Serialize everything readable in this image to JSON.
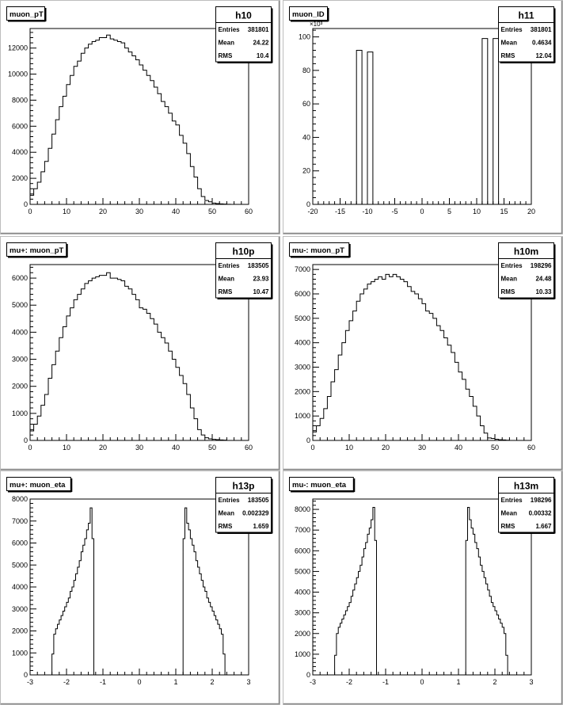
{
  "chart_data": [
    {
      "type": "histogram",
      "title": "muon_pT",
      "stats": {
        "name": "h10",
        "rows": [
          [
            "Entries",
            "381801"
          ],
          [
            "Mean",
            "24.22"
          ],
          [
            "RMS",
            "10.4"
          ]
        ]
      },
      "xlim": [
        0,
        60
      ],
      "ylim": [
        0,
        13500
      ],
      "xticks": [
        0,
        10,
        20,
        30,
        40,
        50,
        60
      ],
      "xticklabels": [
        "0",
        "10",
        "20",
        "30",
        "40",
        "50",
        "60"
      ],
      "yticks": [
        0,
        2000,
        4000,
        6000,
        8000,
        10000,
        12000
      ],
      "yticklabels": [
        "0",
        "2000",
        "4000",
        "6000",
        "8000",
        "10000",
        "12000"
      ],
      "bins": {
        "start": 0,
        "width": 1
      },
      "values": [
        700,
        1200,
        1700,
        2500,
        3300,
        4300,
        5400,
        6500,
        7500,
        8300,
        9200,
        9900,
        10600,
        11000,
        11600,
        12000,
        12300,
        12500,
        12600,
        12800,
        12800,
        13000,
        12700,
        12600,
        12500,
        12400,
        12000,
        11700,
        11400,
        11100,
        10700,
        10300,
        9900,
        9500,
        9000,
        8500,
        7900,
        7500,
        7000,
        6400,
        6100,
        5300,
        4700,
        3900,
        2900,
        2100,
        1200,
        600,
        300,
        200,
        100,
        60,
        40,
        20,
        10,
        0,
        0,
        0,
        0,
        0
      ]
    },
    {
      "type": "histogram",
      "title": "muon_ID",
      "stats": {
        "name": "h11",
        "rows": [
          [
            "Entries",
            "381801"
          ],
          [
            "Mean",
            "0.4634"
          ],
          [
            "RMS",
            "12.04"
          ]
        ]
      },
      "xlim": [
        -20,
        20
      ],
      "ylim": [
        0,
        105
      ],
      "xticks": [
        -20,
        -15,
        -10,
        -5,
        0,
        5,
        10,
        15,
        20
      ],
      "xticklabels": [
        "-20",
        "-15",
        "-10",
        "-5",
        "0",
        "5",
        "10",
        "15",
        "20"
      ],
      "yticks": [
        0,
        20,
        40,
        60,
        80,
        100
      ],
      "yticklabels": [
        "0",
        "20",
        "40",
        "60",
        "80",
        "100"
      ],
      "yexponent": "×10³",
      "bins": {
        "start": -20,
        "width": 1
      },
      "values": [
        0,
        0,
        0,
        0,
        0,
        0,
        0,
        0,
        92,
        0,
        91,
        0,
        0,
        0,
        0,
        0,
        0,
        0,
        0,
        0,
        0,
        0,
        0,
        0,
        0,
        0,
        0,
        0,
        0,
        0,
        0,
        99,
        0,
        99,
        0,
        0,
        0,
        0,
        0,
        0
      ]
    },
    {
      "type": "histogram",
      "title": "mu+: muon_pT",
      "stats": {
        "name": "h10p",
        "rows": [
          [
            "Entries",
            "183505"
          ],
          [
            "Mean",
            "23.93"
          ],
          [
            "RMS",
            "10.47"
          ]
        ]
      },
      "xlim": [
        0,
        60
      ],
      "ylim": [
        0,
        6500
      ],
      "xticks": [
        0,
        10,
        20,
        30,
        40,
        50,
        60
      ],
      "xticklabels": [
        "0",
        "10",
        "20",
        "30",
        "40",
        "50",
        "60"
      ],
      "yticks": [
        0,
        1000,
        2000,
        3000,
        4000,
        5000,
        6000
      ],
      "yticklabels": [
        "0",
        "1000",
        "2000",
        "3000",
        "4000",
        "5000",
        "6000"
      ],
      "bins": {
        "start": 0,
        "width": 1
      },
      "values": [
        350,
        600,
        900,
        1300,
        1700,
        2300,
        2800,
        3300,
        3800,
        4200,
        4600,
        4900,
        5200,
        5400,
        5600,
        5800,
        5900,
        6000,
        6050,
        6100,
        6100,
        6200,
        6000,
        6000,
        5950,
        5900,
        5700,
        5600,
        5400,
        5200,
        4900,
        4850,
        4700,
        4500,
        4300,
        4000,
        3800,
        3600,
        3300,
        3000,
        2700,
        2400,
        2100,
        1700,
        1200,
        800,
        400,
        200,
        100,
        60,
        40,
        30,
        20,
        10,
        0,
        0,
        0,
        0,
        0,
        0
      ]
    },
    {
      "type": "histogram",
      "title": "mu-: muon_pT",
      "stats": {
        "name": "h10m",
        "rows": [
          [
            "Entries",
            "198296"
          ],
          [
            "Mean",
            "24.48"
          ],
          [
            "RMS",
            "10.33"
          ]
        ]
      },
      "xlim": [
        0,
        60
      ],
      "ylim": [
        0,
        7200
      ],
      "xticks": [
        0,
        10,
        20,
        30,
        40,
        50,
        60
      ],
      "xticklabels": [
        "0",
        "10",
        "20",
        "30",
        "40",
        "50",
        "60"
      ],
      "yticks": [
        0,
        1000,
        2000,
        3000,
        4000,
        5000,
        6000,
        7000
      ],
      "yticklabels": [
        "0",
        "1000",
        "2000",
        "3000",
        "4000",
        "5000",
        "6000",
        "7000"
      ],
      "bins": {
        "start": 0,
        "width": 1
      },
      "values": [
        350,
        600,
        900,
        1300,
        1800,
        2400,
        2900,
        3500,
        4000,
        4500,
        4900,
        5300,
        5700,
        6000,
        6200,
        6400,
        6500,
        6600,
        6700,
        6600,
        6800,
        6700,
        6800,
        6700,
        6600,
        6500,
        6300,
        6100,
        6000,
        5800,
        5600,
        5300,
        5200,
        5000,
        4700,
        4500,
        4200,
        3900,
        3600,
        3200,
        2800,
        2500,
        2100,
        1800,
        1400,
        1000,
        600,
        300,
        100,
        80,
        50,
        30,
        20,
        10,
        0,
        0,
        0,
        0,
        0,
        0
      ]
    },
    {
      "type": "histogram",
      "title": "mu+: muon_eta",
      "stats": {
        "name": "h13p",
        "rows": [
          [
            "Entries",
            "183505"
          ],
          [
            "Mean",
            "0.002329"
          ],
          [
            "RMS",
            "1.659"
          ]
        ]
      },
      "xlim": [
        -3,
        3
      ],
      "ylim": [
        0,
        8000
      ],
      "xticks": [
        -3,
        -2,
        -1,
        0,
        1,
        2,
        3
      ],
      "xticklabels": [
        "-3",
        "-2",
        "-1",
        "0",
        "1",
        "2",
        "3"
      ],
      "yticks": [
        0,
        1000,
        2000,
        3000,
        4000,
        5000,
        6000,
        7000,
        8000
      ],
      "yticklabels": [
        "0",
        "1000",
        "2000",
        "3000",
        "4000",
        "5000",
        "6000",
        "7000",
        "8000"
      ],
      "bins": {
        "start": -3,
        "width": 0.05
      },
      "values": [
        0,
        0,
        0,
        0,
        0,
        0,
        0,
        0,
        0,
        0,
        0,
        0,
        950,
        1850,
        2100,
        2300,
        2500,
        2700,
        2900,
        3100,
        3300,
        3500,
        3800,
        4000,
        4300,
        4600,
        4900,
        5200,
        5600,
        5900,
        6200,
        6600,
        6900,
        7600,
        6200,
        0,
        0,
        0,
        0,
        0,
        0,
        0,
        0,
        0,
        0,
        0,
        0,
        0,
        0,
        0,
        0,
        0,
        0,
        0,
        0,
        0,
        0,
        0,
        0,
        0,
        0,
        0,
        0,
        0,
        0,
        0,
        0,
        0,
        0,
        0,
        0,
        0,
        0,
        0,
        0,
        0,
        0,
        0,
        0,
        0,
        0,
        0,
        0,
        0,
        6200,
        7600,
        6900,
        6600,
        6200,
        5900,
        5600,
        5200,
        4900,
        4600,
        4300,
        4000,
        3800,
        3500,
        3300,
        3100,
        2900,
        2700,
        2500,
        2300,
        2100,
        1850,
        950,
        0,
        0,
        0,
        0,
        0,
        0,
        0,
        0,
        0,
        0,
        0,
        0
      ]
    },
    {
      "type": "histogram",
      "title": "mu-: muon_eta",
      "stats": {
        "name": "h13m",
        "rows": [
          [
            "Entries",
            "198296"
          ],
          [
            "Mean",
            "0.00332"
          ],
          [
            "RMS",
            "1.667"
          ]
        ]
      },
      "xlim": [
        -3,
        3
      ],
      "ylim": [
        0,
        8500
      ],
      "xticks": [
        -3,
        -2,
        -1,
        0,
        1,
        2,
        3
      ],
      "xticklabels": [
        "-3",
        "-2",
        "-1",
        "0",
        "1",
        "2",
        "3"
      ],
      "yticks": [
        0,
        1000,
        2000,
        3000,
        4000,
        5000,
        6000,
        7000,
        8000
      ],
      "yticklabels": [
        "0",
        "1000",
        "2000",
        "3000",
        "4000",
        "5000",
        "6000",
        "7000",
        "8000"
      ],
      "bins": {
        "start": -3,
        "width": 0.05
      },
      "values": [
        0,
        0,
        0,
        0,
        0,
        0,
        0,
        0,
        0,
        0,
        0,
        0,
        950,
        2000,
        2300,
        2500,
        2700,
        2900,
        3100,
        3300,
        3500,
        3800,
        4100,
        4400,
        4700,
        5000,
        5300,
        5700,
        6100,
        6400,
        6800,
        7100,
        7500,
        8100,
        6500,
        0,
        0,
        0,
        0,
        0,
        0,
        0,
        0,
        0,
        0,
        0,
        0,
        0,
        0,
        0,
        0,
        0,
        0,
        0,
        0,
        0,
        0,
        0,
        0,
        0,
        0,
        0,
        0,
        0,
        0,
        0,
        0,
        0,
        0,
        0,
        0,
        0,
        0,
        0,
        0,
        0,
        0,
        0,
        0,
        0,
        0,
        0,
        0,
        0,
        6500,
        8100,
        7500,
        7100,
        6800,
        6400,
        6100,
        5700,
        5300,
        5000,
        4700,
        4400,
        4100,
        3800,
        3500,
        3300,
        3100,
        2900,
        2700,
        2500,
        2300,
        2000,
        950,
        0,
        0,
        0,
        0,
        0,
        0,
        0,
        0,
        0,
        0,
        0,
        0
      ]
    }
  ]
}
